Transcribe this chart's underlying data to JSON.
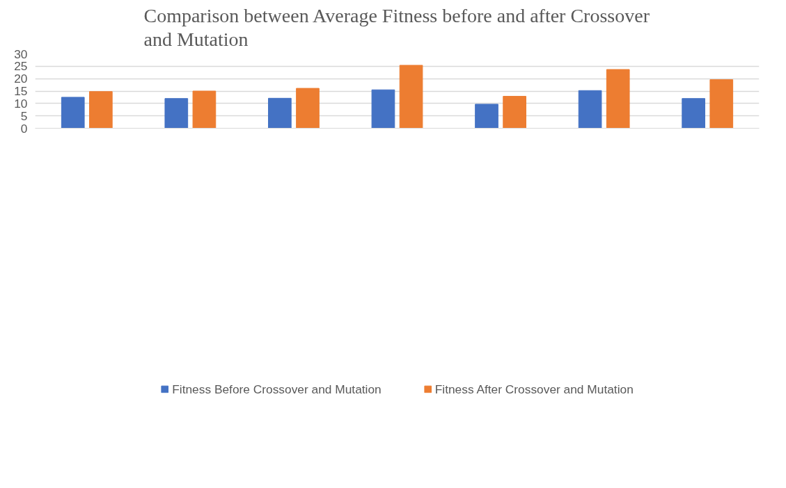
{
  "chart_data": {
    "type": "bar",
    "title": "Comparison between Average Fitness before and after Crossover and Mutation",
    "categories": [
      null,
      null,
      null,
      null,
      null,
      null,
      null
    ],
    "series": [
      {
        "name": "Fitness Before Crossover and Mutation",
        "color": "#4472c4",
        "values": [
          12.5,
          12.0,
          12.1,
          15.5,
          9.7,
          15.2,
          12.0
        ]
      },
      {
        "name": "Fitness After Crossover and Mutation",
        "color": "#ed7d31",
        "values": [
          14.8,
          15.0,
          16.1,
          25.4,
          12.9,
          23.7,
          19.6
        ]
      }
    ],
    "ylim": [
      0,
      30
    ],
    "yticks": [
      0,
      5,
      10,
      15,
      20,
      25,
      30
    ],
    "grid": "y",
    "legend": "bottom"
  }
}
